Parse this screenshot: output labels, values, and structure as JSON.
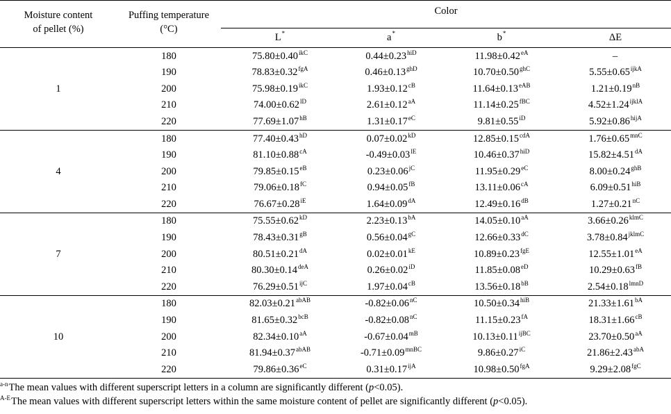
{
  "header": {
    "moisture_line1": "Moisture content",
    "moisture_line2": "of pellet (%)",
    "temp_line1": "Puffing temperature",
    "temp_line2": "(°C)",
    "color": "Color",
    "L": "L",
    "a": "a",
    "b": "b",
    "dE": "ΔE",
    "star": "*"
  },
  "groups": [
    {
      "moisture": "1",
      "rows": [
        {
          "temp": "180",
          "L": "75.80±0.40",
          "L_sup": "ikC",
          "a": "0.44±0.23",
          "a_sup": "hiD",
          "b": "11.98±0.42",
          "b_sup": "eA",
          "dE": "–",
          "dE_sup": ""
        },
        {
          "temp": "190",
          "L": "78.83±0.32",
          "L_sup": "fgA",
          "a": "0.46±0.13",
          "a_sup": "ghD",
          "b": "10.70±0.50",
          "b_sup": "ghC",
          "dE": "5.55±0.65",
          "dE_sup": "ijkA"
        },
        {
          "temp": "200",
          "L": "75.98±0.19",
          "L_sup": "ikC",
          "a": "1.93±0.12",
          "a_sup": "cB",
          "b": "11.64±0.13",
          "b_sup": "eAB",
          "dE": "1.21±0.19",
          "dE_sup": "nB"
        },
        {
          "temp": "210",
          "L": "74.00±0.62",
          "L_sup": "lD",
          "a": "2.61±0.12",
          "a_sup": "aA",
          "b": "11.14±0.25",
          "b_sup": "fBC",
          "dE": "4.52±1.24",
          "dE_sup": "ijklA"
        },
        {
          "temp": "220",
          "L": "77.69±1.07",
          "L_sup": "hB",
          "a": "1.31±0.17",
          "a_sup": "eC",
          "b": "9.81±0.55",
          "b_sup": "iD",
          "dE": "5.92±0.86",
          "dE_sup": "hijA"
        }
      ]
    },
    {
      "moisture": "4",
      "rows": [
        {
          "temp": "180",
          "L": "77.40±0.43",
          "L_sup": "hD",
          "a": "0.07±0.02",
          "a_sup": "kD",
          "b": "12.85±0.15",
          "b_sup": "cdA",
          "dE": "1.76±0.65",
          "dE_sup": "mnC"
        },
        {
          "temp": "190",
          "L": "81.10±0.88",
          "L_sup": "cA",
          "a": "-0.49±0.03",
          "a_sup": "lE",
          "b": "10.46±0.37",
          "b_sup": "hiD",
          "dE": "15.82±4.51",
          "dE_sup": "dA"
        },
        {
          "temp": "200",
          "L": "79.85±0.15",
          "L_sup": "eB",
          "a": "0.23±0.06",
          "a_sup": "jC",
          "b": "11.95±0.29",
          "b_sup": "eC",
          "dE": "8.00±0.24",
          "dE_sup": "ghB"
        },
        {
          "temp": "210",
          "L": "79.06±0.18",
          "L_sup": "fC",
          "a": "0.94±0.05",
          "a_sup": "fB",
          "b": "13.11±0.06",
          "b_sup": "cA",
          "dE": "6.09±0.51",
          "dE_sup": "hiB"
        },
        {
          "temp": "220",
          "L": "76.67±0.28",
          "L_sup": "iE",
          "a": "1.64±0.09",
          "a_sup": "dA",
          "b": "12.49±0.16",
          "b_sup": "dB",
          "dE": "1.27±0.21",
          "dE_sup": "nC"
        }
      ]
    },
    {
      "moisture": "7",
      "rows": [
        {
          "temp": "180",
          "L": "75.55±0.62",
          "L_sup": "kD",
          "a": "2.23±0.13",
          "a_sup": "bA",
          "b": "14.05±0.10",
          "b_sup": "aA",
          "dE": "3.66±0.26",
          "dE_sup": "klmC"
        },
        {
          "temp": "190",
          "L": "78.43±0.31",
          "L_sup": "gB",
          "a": "0.56±0.04",
          "a_sup": "gC",
          "b": "12.66±0.33",
          "b_sup": "dC",
          "dE": "3.78±0.84",
          "dE_sup": "jklmC"
        },
        {
          "temp": "200",
          "L": "80.51±0.21",
          "L_sup": "dA",
          "a": "0.02±0.01",
          "a_sup": "kE",
          "b": "10.89±0.23",
          "b_sup": "fgE",
          "dE": "12.55±1.01",
          "dE_sup": "eA"
        },
        {
          "temp": "210",
          "L": "80.30±0.14",
          "L_sup": "deA",
          "a": "0.26±0.02",
          "a_sup": "iD",
          "b": "11.85±0.08",
          "b_sup": "eD",
          "dE": "10.29±0.63",
          "dE_sup": "fB"
        },
        {
          "temp": "220",
          "L": "76.29±0.51",
          "L_sup": "ijC",
          "a": "1.97±0.04",
          "a_sup": "cB",
          "b": "13.56±0.18",
          "b_sup": "bB",
          "dE": "2.54±0.18",
          "dE_sup": "lmnD"
        }
      ]
    },
    {
      "moisture": "10",
      "rows": [
        {
          "temp": "180",
          "L": "82.03±0.21",
          "L_sup": "abAB",
          "a": "-0.82±0.06",
          "a_sup": "nC",
          "b": "10.50±0.34",
          "b_sup": "hiB",
          "dE": "21.33±1.61",
          "dE_sup": "bA"
        },
        {
          "temp": "190",
          "L": "81.65±0.32",
          "L_sup": "bcB",
          "a": "-0.82±0.08",
          "a_sup": "nC",
          "b": "11.15±0.23",
          "b_sup": "fA",
          "dE": "18.31±1.66",
          "dE_sup": "cB"
        },
        {
          "temp": "200",
          "L": "82.34±0.10",
          "L_sup": "aA",
          "a": "-0.67±0.04",
          "a_sup": "mB",
          "b": "10.13±0.11",
          "b_sup": "ijBC",
          "dE": "23.70±0.50",
          "dE_sup": "aA"
        },
        {
          "temp": "210",
          "L": "81.94±0.37",
          "L_sup": "abAB",
          "a": "-0.71±0.09",
          "a_sup": "mnBC",
          "b": "9.86±0.27",
          "b_sup": "iC",
          "dE": "21.86±2.43",
          "dE_sup": "abA"
        },
        {
          "temp": "220",
          "L": "79.86±0.36",
          "L_sup": "eC",
          "a": "0.31±0.17",
          "a_sup": "ijA",
          "b": "10.98±0.50",
          "b_sup": "fgA",
          "dE": "9.29±2.08",
          "dE_sup": "fgC"
        }
      ]
    }
  ],
  "footnotes": {
    "n1_sup": "a-n",
    "n1_text": "The mean values with different superscript letters in a column are significantly different (",
    "n1_p": "p",
    "n1_end": "<0.05).",
    "n2_sup": "A-E",
    "n2_text": "The mean values with different superscript letters within the same moisture content of pellet are significantly different (",
    "n2_p": "p",
    "n2_end": "<0.05)."
  }
}
